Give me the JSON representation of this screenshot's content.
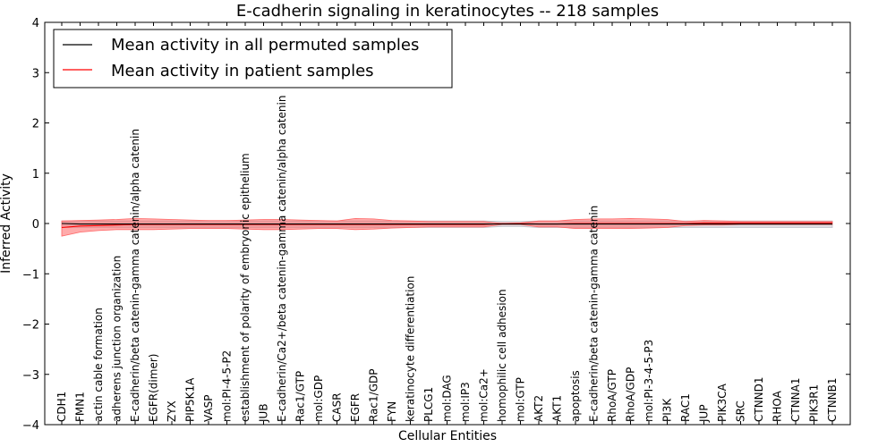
{
  "chart_data": {
    "type": "line",
    "title": "E-cadherin signaling in keratinocytes -- 218 samples",
    "xlabel": "Cellular Entities",
    "ylabel": "Inferred Activity",
    "ylim": [
      -4,
      4
    ],
    "yticks": [
      "−4",
      "−3",
      "−2",
      "−1",
      "0",
      "1",
      "2",
      "3",
      "4"
    ],
    "ytick_values": [
      -4,
      -3,
      -2,
      -1,
      0,
      1,
      2,
      3,
      4
    ],
    "grid": false,
    "legend_position": "top-left",
    "categories": [
      "CDH1",
      "FMN1",
      "actin cable formation",
      "adherens junction organization",
      "E-cadherin/beta catenin-gamma catenin/alpha catenin",
      "EGFR(dimer)",
      "ZYX",
      "PIP5K1A",
      "VASP",
      "mol:PI-4-5-P2",
      "establishment of polarity of embryonic epithelium",
      "JUB",
      "E-cadherin/Ca2+/beta catenin-gamma catenin/alpha catenin",
      "Rac1/GTP",
      "mol:GDP",
      "CASR",
      "EGFR",
      "Rac1/GDP",
      "FYN",
      "keratinocyte differentiation",
      "PLCG1",
      "mol:DAG",
      "mol:IP3",
      "mol:Ca2+",
      "homophilic cell adhesion",
      "mol:GTP",
      "AKT2",
      "AKT1",
      "apoptosis",
      "E-cadherin/beta catenin-gamma catenin",
      "RhoA/GTP",
      "RhoA/GDP",
      "mol:PI-3-4-5-P3",
      "PI3K",
      "RAC1",
      "JUP",
      "PIK3CA",
      "SRC",
      "CTNND1",
      "RHOA",
      "CTNNA1",
      "PIK3R1",
      "CTNNB1"
    ],
    "series": [
      {
        "name": "Mean activity in all permuted samples",
        "color": "#000000",
        "values": [
          0,
          -0.01,
          -0.01,
          -0.01,
          -0.01,
          -0.01,
          -0.01,
          -0.01,
          -0.01,
          -0.01,
          -0.01,
          -0.01,
          -0.01,
          -0.01,
          -0.01,
          -0.01,
          -0.01,
          -0.01,
          -0.01,
          -0.01,
          -0.01,
          -0.01,
          -0.01,
          -0.01,
          -0.01,
          -0.01,
          -0.01,
          -0.01,
          -0.01,
          -0.01,
          -0.01,
          -0.01,
          -0.01,
          -0.01,
          -0.01,
          -0.01,
          -0.01,
          -0.01,
          -0.01,
          -0.01,
          -0.01,
          -0.01,
          -0.01
        ],
        "band_upper": [
          0.05,
          0.05,
          0.05,
          0.05,
          0.05,
          0.05,
          0.05,
          0.05,
          0.05,
          0.05,
          0.05,
          0.05,
          0.05,
          0.05,
          0.05,
          0.05,
          0.05,
          0.05,
          0.05,
          0.05,
          0.05,
          0.05,
          0.05,
          0.05,
          0.04,
          0.04,
          0.05,
          0.05,
          0.05,
          0.05,
          0.05,
          0.05,
          0.05,
          0.05,
          0.05,
          0.05,
          0.05,
          0.05,
          0.05,
          0.05,
          0.05,
          0.05,
          0.05
        ],
        "band_lower": [
          -0.08,
          -0.08,
          -0.08,
          -0.08,
          -0.08,
          -0.08,
          -0.08,
          -0.08,
          -0.08,
          -0.08,
          -0.08,
          -0.08,
          -0.08,
          -0.08,
          -0.08,
          -0.08,
          -0.08,
          -0.08,
          -0.08,
          -0.08,
          -0.08,
          -0.08,
          -0.08,
          -0.08,
          -0.06,
          -0.06,
          -0.08,
          -0.08,
          -0.08,
          -0.08,
          -0.08,
          -0.08,
          -0.08,
          -0.08,
          -0.08,
          -0.08,
          -0.08,
          -0.08,
          -0.08,
          -0.08,
          -0.08,
          -0.08,
          -0.08
        ],
        "band_color": "#c0c0c8"
      },
      {
        "name": "Mean activity in patient samples",
        "color": "#ff0000",
        "values": [
          -0.08,
          -0.05,
          -0.04,
          -0.03,
          -0.02,
          -0.02,
          -0.02,
          -0.02,
          -0.02,
          -0.02,
          -0.02,
          -0.02,
          -0.02,
          -0.02,
          -0.02,
          -0.02,
          -0.02,
          -0.02,
          -0.02,
          -0.02,
          -0.02,
          -0.02,
          -0.02,
          -0.02,
          0,
          0,
          -0.01,
          -0.01,
          0,
          0,
          0,
          0,
          0,
          0,
          0,
          0.01,
          0.01,
          0.01,
          0.01,
          0.01,
          0.01,
          0.01,
          0.01
        ],
        "band_upper": [
          0.05,
          0.06,
          0.07,
          0.08,
          0.1,
          0.09,
          0.08,
          0.07,
          0.06,
          0.06,
          0.07,
          0.08,
          0.08,
          0.07,
          0.06,
          0.05,
          0.1,
          0.09,
          0.06,
          0.05,
          0.04,
          0.04,
          0.04,
          0.04,
          0,
          0.01,
          0.05,
          0.05,
          0.08,
          0.09,
          0.09,
          0.1,
          0.09,
          0.08,
          0.04,
          0.06,
          0.05,
          0.04,
          0.04,
          0.04,
          0.04,
          0.04,
          0.04
        ],
        "band_lower": [
          -0.25,
          -0.17,
          -0.14,
          -0.12,
          -0.12,
          -0.12,
          -0.11,
          -0.1,
          -0.1,
          -0.1,
          -0.11,
          -0.12,
          -0.12,
          -0.11,
          -0.1,
          -0.1,
          -0.12,
          -0.11,
          -0.09,
          -0.08,
          -0.07,
          -0.07,
          -0.07,
          -0.07,
          -0.02,
          -0.02,
          -0.07,
          -0.07,
          -0.1,
          -0.1,
          -0.1,
          -0.1,
          -0.09,
          -0.08,
          -0.04,
          -0.03,
          -0.03,
          -0.02,
          -0.02,
          -0.02,
          -0.02,
          -0.02,
          -0.02
        ],
        "band_color": "#ff6666"
      }
    ]
  }
}
